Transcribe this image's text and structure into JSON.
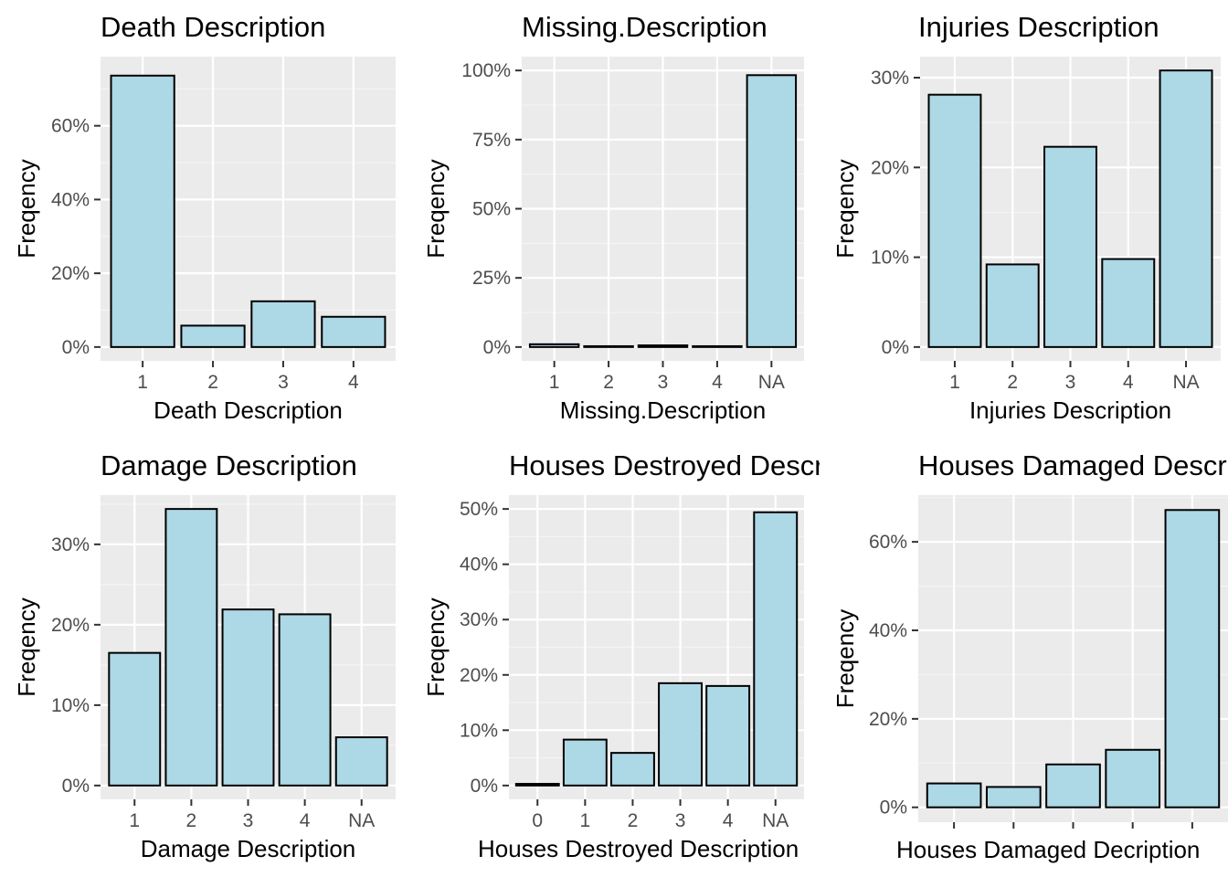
{
  "colors": {
    "panel_background": "#EBEBEB",
    "grid_major": "#FFFFFF",
    "grid_minor": "#F4F4F4",
    "bar_fill": "#ADD8E6",
    "bar_outline": "#000000",
    "tick_text": "#4D4D4D",
    "tick_mark": "#333333"
  },
  "chart_data": [
    {
      "type": "bar",
      "title": "Death Description",
      "xlabel": "Death Description",
      "ylabel": "Freqency",
      "categories": [
        "1",
        "2",
        "3",
        "4"
      ],
      "values": [
        73.6,
        5.8,
        12.4,
        8.2
      ],
      "ylim": [
        0,
        75
      ],
      "yticks": [
        0,
        20,
        40,
        60
      ],
      "ytick_labels": [
        "0%",
        "20%",
        "40%",
        "60%"
      ],
      "grid": true,
      "legend": "none"
    },
    {
      "type": "bar",
      "title": "Missing.Description",
      "xlabel": "Missing.Description",
      "ylabel": "Freqency",
      "categories": [
        "1",
        "2",
        "3",
        "4",
        "NA"
      ],
      "values": [
        1.0,
        0.3,
        0.6,
        0.3,
        98.3
      ],
      "ylim": [
        0,
        100
      ],
      "yticks": [
        0,
        25,
        50,
        75,
        100
      ],
      "ytick_labels": [
        "0%",
        "25%",
        "50%",
        "75%",
        "100%"
      ],
      "grid": true,
      "legend": "none"
    },
    {
      "type": "bar",
      "title": "Injuries Description",
      "xlabel": "Injuries Description",
      "ylabel": "Freqency",
      "categories": [
        "1",
        "2",
        "3",
        "4",
        "NA"
      ],
      "values": [
        28.1,
        9.2,
        22.3,
        9.8,
        30.8
      ],
      "ylim": [
        0,
        30.8
      ],
      "yticks": [
        0,
        10,
        20,
        30
      ],
      "ytick_labels": [
        "0%",
        "10%",
        "20%",
        "30%"
      ],
      "grid": true,
      "legend": "none"
    },
    {
      "type": "bar",
      "title": "Damage Description",
      "xlabel": "Damage Description",
      "ylabel": "Freqency",
      "categories": [
        "1",
        "2",
        "3",
        "4",
        "NA"
      ],
      "values": [
        16.5,
        34.4,
        21.9,
        21.3,
        6.0
      ],
      "ylim": [
        0,
        34.4
      ],
      "yticks": [
        0,
        10,
        20,
        30
      ],
      "ytick_labels": [
        "0%",
        "10%",
        "20%",
        "30%"
      ],
      "grid": true,
      "legend": "none"
    },
    {
      "type": "bar",
      "title": "Houses Destroyed Description",
      "xlabel": "Houses Destroyed Description",
      "ylabel": "Freqency",
      "categories": [
        "0",
        "1",
        "2",
        "3",
        "4",
        "NA"
      ],
      "values": [
        0.3,
        8.3,
        5.9,
        18.5,
        18.0,
        49.4
      ],
      "ylim": [
        0,
        50
      ],
      "yticks": [
        0,
        10,
        20,
        30,
        40,
        50
      ],
      "ytick_labels": [
        "0%",
        "10%",
        "20%",
        "30%",
        "40%",
        "50%"
      ],
      "grid": true,
      "legend": "none"
    },
    {
      "type": "bar",
      "title": "Houses Damaged Description",
      "xlabel": "Houses Damaged Decription",
      "ylabel": "Freqency",
      "categories": [
        "",
        "",
        "",
        "",
        ""
      ],
      "values": [
        5.4,
        4.6,
        9.7,
        13.0,
        67.2
      ],
      "ylim": [
        0,
        67.2
      ],
      "yticks": [
        0,
        20,
        40,
        60
      ],
      "ytick_labels": [
        "0%",
        "20%",
        "40%",
        "60%"
      ],
      "grid": true,
      "legend": "none"
    }
  ]
}
